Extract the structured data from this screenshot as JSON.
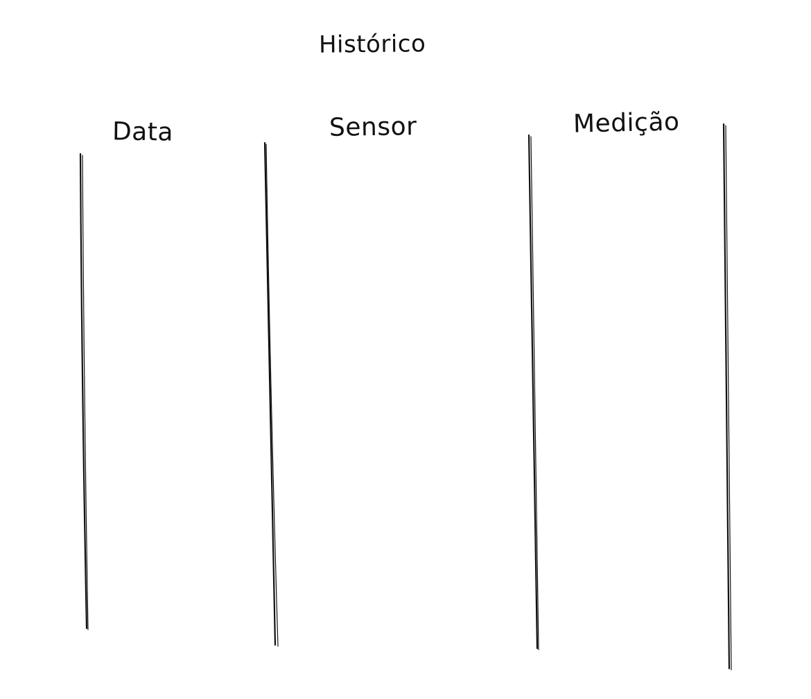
{
  "canvas": {
    "background": "#ffffff",
    "stroke_color": "#111111"
  },
  "title": "Histórico",
  "columns": [
    {
      "label": "Data"
    },
    {
      "label": "Sensor"
    },
    {
      "label": "Medição"
    }
  ]
}
